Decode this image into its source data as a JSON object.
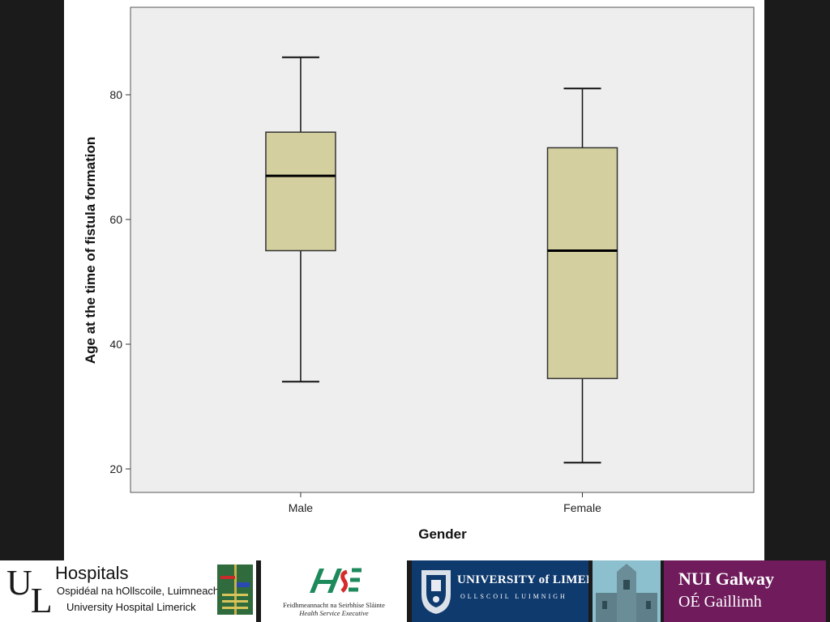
{
  "chart_data": {
    "type": "boxplot",
    "xlabel": "Gender",
    "ylabel": "Age at the time of fistula formation",
    "categories": [
      "Male",
      "Female"
    ],
    "boxes": [
      {
        "category": "Male",
        "min": 34,
        "q1": 55,
        "median": 67,
        "q3": 74,
        "max": 86
      },
      {
        "category": "Female",
        "min": 21,
        "q1": 34.5,
        "median": 55,
        "q3": 71.5,
        "max": 81
      }
    ],
    "yticks": [
      20,
      40,
      60,
      80
    ],
    "ylim": [
      16,
      93
    ],
    "grid": false,
    "box_color": "#d3cf9e",
    "plot_background": "#eeeeee"
  },
  "logos": {
    "ul": {
      "letters_1": "U",
      "letters_2": "L",
      "title": "Hospitals",
      "line1": "Ospidéal na hOllscoile, Luimneach",
      "line2": "University Hospital Limerick"
    },
    "hse": {
      "line1": "Feidhmeannacht na Seirbhíse Sláinte",
      "line2": "Health Service Executive"
    },
    "limerick": {
      "title": "UNIVERSITY of LIMERICK",
      "subtitle": "OLLSCOIL LUIMNIGH"
    },
    "galway": {
      "line1": "NUI Galway",
      "line2": "OÉ Gaillimh"
    }
  }
}
